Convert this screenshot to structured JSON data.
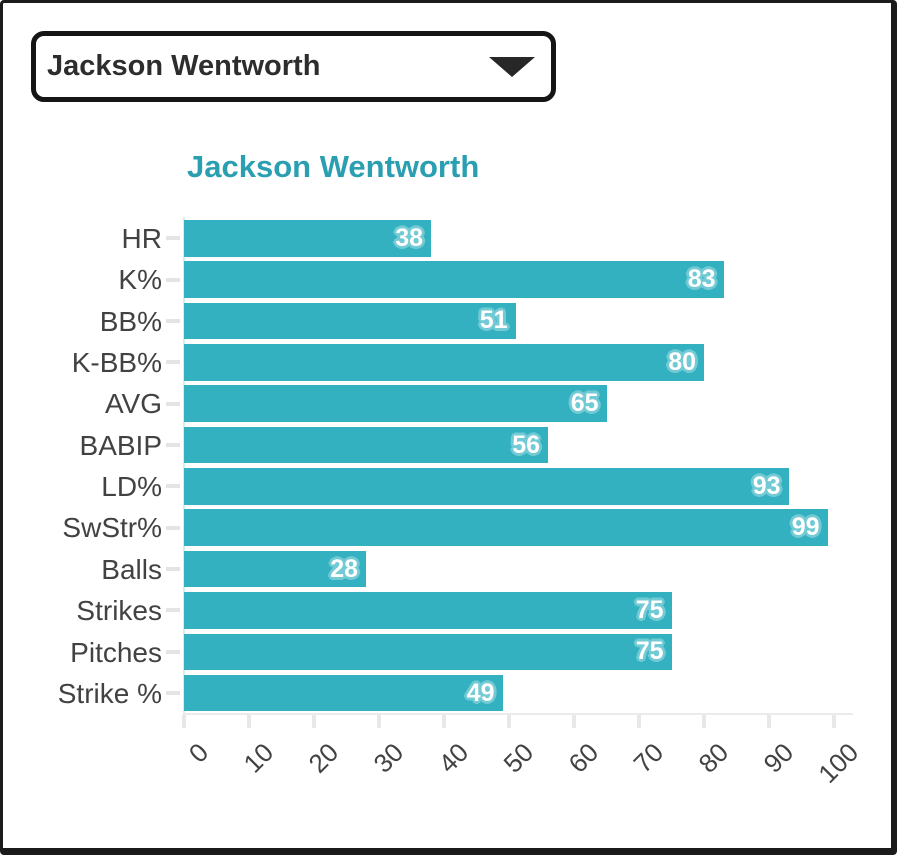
{
  "window": {
    "background": "#ffffff",
    "border_color": "#1b1b1b"
  },
  "dropdown": {
    "value": "Jackson Wentworth",
    "icon": "chevron-down-icon"
  },
  "chart_data": {
    "type": "bar",
    "orientation": "horizontal",
    "title": "Jackson Wentworth",
    "categories": [
      "HR",
      "K%",
      "BB%",
      "K-BB%",
      "AVG",
      "BABIP",
      "LD%",
      "SwStr%",
      "Balls",
      "Strikes",
      "Pitches",
      "Strike %"
    ],
    "values": [
      38,
      83,
      51,
      80,
      65,
      56,
      93,
      99,
      28,
      75,
      75,
      49
    ],
    "xlim": [
      0,
      100
    ],
    "x_ticks": [
      0,
      10,
      20,
      30,
      40,
      50,
      60,
      70,
      80,
      90,
      100
    ],
    "grid": false,
    "legend": false,
    "title_color": "#2a9fb1",
    "bar_color": "#33b1c1",
    "value_label_color": "#ffffff",
    "value_halo_color": "#72cad4",
    "axis_label_color": "#424242"
  }
}
